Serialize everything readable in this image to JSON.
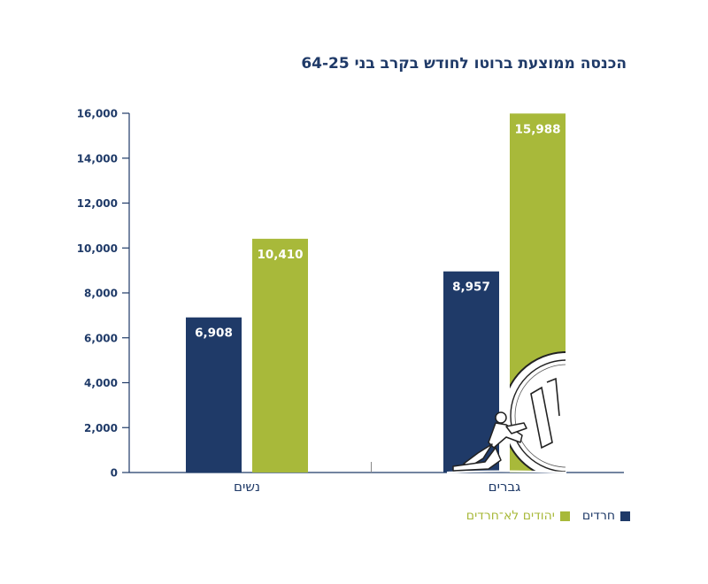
{
  "colors": {
    "haredi": "#1f3a68",
    "non_haredi": "#a8b93a",
    "axis": "#1f3a68",
    "tick_text": "#1f3a68",
    "category_text": "#1f3a68"
  },
  "chart_data": {
    "type": "bar",
    "title": "הכנסה ממוצעת ברוטו לחודש בקרב בני 64-25",
    "categories": [
      "נשים",
      "גברים"
    ],
    "series": [
      {
        "name": "חרדים",
        "values": [
          6908,
          8957
        ],
        "labels": [
          "6,908",
          "8,957"
        ]
      },
      {
        "name": "יהודים לא־חרדים",
        "values": [
          10410,
          15988
        ],
        "labels": [
          "10,410",
          "15,988"
        ]
      }
    ],
    "yticks": [
      0,
      2000,
      4000,
      6000,
      8000,
      10000,
      12000,
      14000,
      16000
    ],
    "ytick_labels": [
      "0",
      "2,000",
      "4,000",
      "6,000",
      "8,000",
      "10,000",
      "12,000",
      "14,000",
      "16,000"
    ],
    "ylim": [
      0,
      16000
    ],
    "grid": false,
    "legend_position": "bottom-right",
    "illustration": "person-pushing-coin-icon"
  }
}
